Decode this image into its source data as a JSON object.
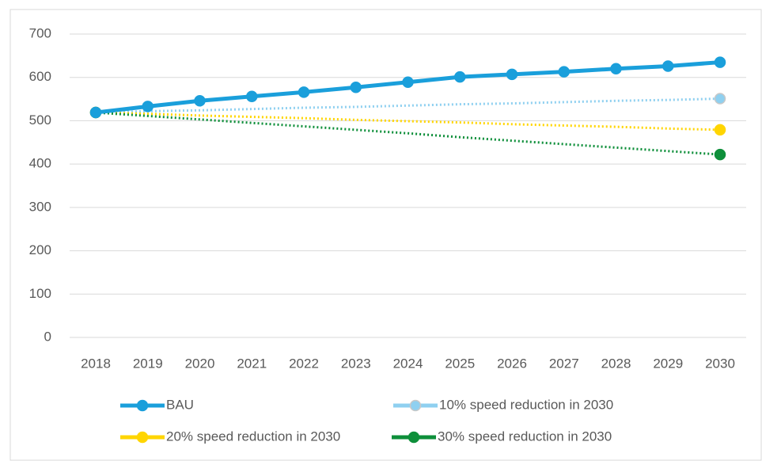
{
  "chart_data": {
    "type": "line",
    "categories": [
      "2018",
      "2019",
      "2020",
      "2021",
      "2022",
      "2023",
      "2024",
      "2025",
      "2026",
      "2027",
      "2028",
      "2029",
      "2030"
    ],
    "series": [
      {
        "name": "BAU",
        "color": "#1a9fdb",
        "line_style": "solid",
        "markers": "all",
        "values": [
          519,
          533,
          546,
          556,
          566,
          577,
          589,
          601,
          607,
          613,
          620,
          626,
          635
        ]
      },
      {
        "name": "10% speed reduction in 2030",
        "color": "#8fd0f0",
        "line_style": "dotted",
        "markers": "ends",
        "values": [
          519,
          522,
          524,
          527,
          530,
          532,
          535,
          538,
          540,
          543,
          546,
          548,
          551
        ]
      },
      {
        "name": "20% speed reduction in 2030",
        "color": "#ffd500",
        "line_style": "dotted",
        "markers": "ends",
        "values": [
          519,
          516,
          512,
          509,
          506,
          502,
          499,
          496,
          492,
          489,
          486,
          482,
          479
        ]
      },
      {
        "name": "30% speed reduction in 2030",
        "color": "#0e8f3a",
        "line_style": "dotted",
        "markers": "ends",
        "values": [
          519,
          511,
          503,
          495,
          487,
          479,
          471,
          462,
          454,
          446,
          438,
          430,
          422
        ]
      }
    ],
    "ylim": [
      0,
      700
    ],
    "yticks": [
      0,
      100,
      200,
      300,
      400,
      500,
      600,
      700
    ],
    "grid": true,
    "legend": "bottom"
  }
}
